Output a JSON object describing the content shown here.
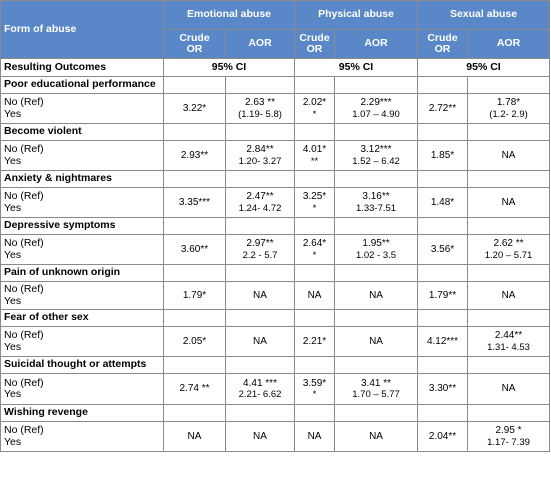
{
  "header": {
    "form_of_abuse": "Form of abuse",
    "groups": [
      "Emotional abuse",
      "Physical abuse",
      "Sexual abuse"
    ],
    "sub": {
      "crude": [
        "Crude",
        "OR"
      ],
      "aor": "AOR"
    }
  },
  "ci_row": {
    "label": "Resulting Outcomes",
    "ci": "95%  CI"
  },
  "ref_labels": {
    "no": "No (Ref)",
    "yes": "Yes"
  },
  "outcomes": [
    {
      "title": "Poor educational performance",
      "emo_crude": [
        "3.22*"
      ],
      "emo_aor": [
        "2.63 **",
        "(1.19- 5.8)"
      ],
      "phy_crude": [
        "2.02*",
        "*"
      ],
      "phy_aor": [
        "2.29***",
        "1.07 – 4.90"
      ],
      "sex_crude": [
        "2.72**"
      ],
      "sex_aor": [
        "1.78*",
        "(1.2- 2.9)"
      ]
    },
    {
      "title": "Become violent",
      "emo_crude": [
        "2.93**"
      ],
      "emo_aor": [
        "2.84**",
        "1.20- 3.27"
      ],
      "phy_crude": [
        "4.01*",
        "**"
      ],
      "phy_aor": [
        "3.12***",
        "1.52 – 6.42"
      ],
      "sex_crude": [
        "1.85*"
      ],
      "sex_aor": [
        "NA"
      ]
    },
    {
      "title": "Anxiety & nightmares",
      "emo_crude": [
        "3.35***"
      ],
      "emo_aor": [
        "2.47**",
        "1.24- 4.72"
      ],
      "phy_crude": [
        "3.25*",
        "*"
      ],
      "phy_aor": [
        "3.16**",
        "1.33-7.51"
      ],
      "sex_crude": [
        "1.48*"
      ],
      "sex_aor": [
        "NA"
      ]
    },
    {
      "title": "Depressive symptoms",
      "emo_crude": [
        "3.60**"
      ],
      "emo_aor": [
        "2.97**",
        "2.2 - 5.7"
      ],
      "phy_crude": [
        "2.64*",
        "*"
      ],
      "phy_aor": [
        "1.95**",
        "1.02 - 3.5"
      ],
      "sex_crude": [
        "3.56*"
      ],
      "sex_aor": [
        "2.62 **",
        "1.20 – 5.71"
      ]
    },
    {
      "title": "Pain of unknown  origin",
      "emo_crude": [
        "1.79*"
      ],
      "emo_aor": [
        "NA"
      ],
      "phy_crude": [
        "NA"
      ],
      "phy_aor": [
        "NA"
      ],
      "sex_crude": [
        "1.79**"
      ],
      "sex_aor": [
        "NA"
      ]
    },
    {
      "title": "Fear of other  sex",
      "emo_crude": [
        "2.05*"
      ],
      "emo_aor": [
        "NA"
      ],
      "phy_crude": [
        "2.21*"
      ],
      "phy_aor": [
        "NA"
      ],
      "sex_crude": [
        "4.12***"
      ],
      "sex_aor": [
        "2.44**",
        "1.31- 4.53"
      ]
    },
    {
      "title": "Suicidal thought  or attempts",
      "emo_crude": [
        "2.74 **"
      ],
      "emo_aor": [
        "4.41 ***",
        "2.21- 6.62"
      ],
      "phy_crude": [
        "3.59*",
        "*"
      ],
      "phy_aor": [
        "3.41 **",
        "1.70 – 5.77"
      ],
      "sex_crude": [
        "3.30**"
      ],
      "sex_aor": [
        "NA"
      ]
    },
    {
      "title": "Wishing revenge",
      "emo_crude": [
        "NA"
      ],
      "emo_aor": [
        "NA"
      ],
      "phy_crude": [
        "NA"
      ],
      "phy_aor": [
        "NA"
      ],
      "sex_crude": [
        "2.04**"
      ],
      "sex_aor": [
        "2.95 *",
        "1.17- 7.39"
      ]
    }
  ]
}
